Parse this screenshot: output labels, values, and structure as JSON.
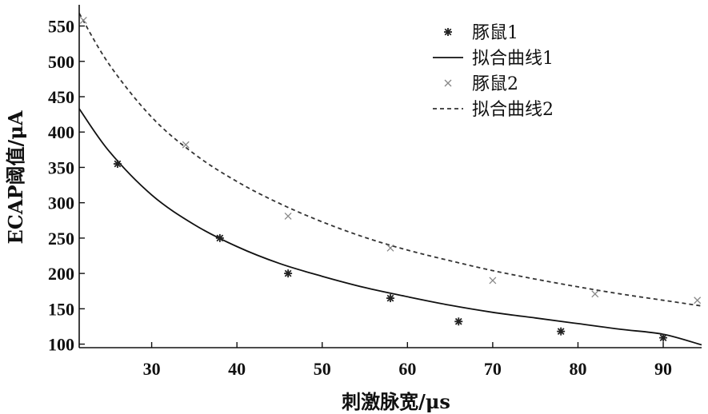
{
  "chart_data": {
    "type": "scatter",
    "xlabel": "刺激脉宽/μs",
    "ylabel": "ECAP阈值/μA",
    "xlim": [
      21.5,
      94.5
    ],
    "ylim": [
      95,
      580
    ],
    "xticks": [
      30,
      40,
      50,
      60,
      70,
      80,
      90
    ],
    "yticks": [
      100,
      150,
      200,
      250,
      300,
      350,
      400,
      450,
      500,
      550
    ],
    "grid": false,
    "legend_position": "top-right",
    "series": [
      {
        "name": "豚鼠1",
        "kind": "points",
        "marker": "asterisk",
        "color": "#222222",
        "x": [
          26,
          38,
          46,
          58,
          66,
          78,
          90
        ],
        "y": [
          355,
          250,
          200,
          165,
          132,
          118,
          109
        ]
      },
      {
        "name": "拟合曲线1",
        "kind": "line",
        "dash": "solid",
        "color": "#111111",
        "x": [
          21.5,
          25,
          30,
          35,
          40,
          45,
          50,
          55,
          60,
          65,
          70,
          75,
          80,
          85,
          90,
          94.5
        ],
        "y": [
          433,
          373,
          311,
          269,
          238,
          214,
          196,
          180,
          167,
          155,
          145,
          137,
          129,
          121,
          114,
          99
        ]
      },
      {
        "name": "豚鼠2",
        "kind": "points",
        "marker": "x",
        "color": "#888888",
        "x": [
          22,
          34,
          46,
          58,
          70,
          82,
          94
        ],
        "y": [
          558,
          382,
          281,
          236,
          190,
          171,
          162
        ]
      },
      {
        "name": "拟合曲线2",
        "kind": "line",
        "dash": "dashed",
        "color": "#333333",
        "x": [
          21.5,
          25,
          30,
          35,
          40,
          45,
          50,
          55,
          60,
          65,
          70,
          75,
          80,
          85,
          90,
          94.5
        ],
        "y": [
          568,
          496,
          421,
          369,
          330,
          299,
          273,
          251,
          233,
          218,
          204,
          192,
          181,
          171,
          162,
          154
        ]
      }
    ]
  }
}
